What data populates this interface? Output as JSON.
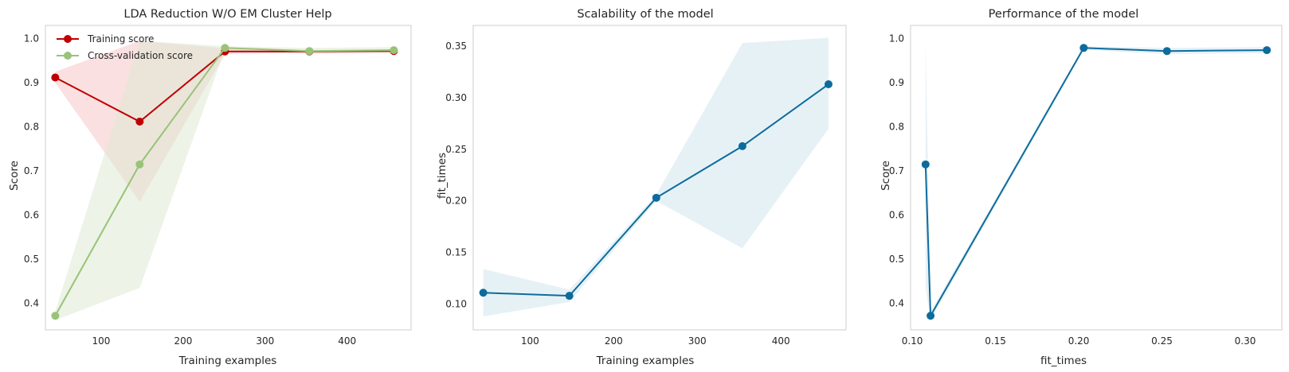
{
  "chart_data": [
    {
      "type": "line",
      "title": "LDA Reduction W/O EM Cluster Help",
      "xlabel": "Training examples",
      "ylabel": "Score",
      "xlim": [
        32,
        478
      ],
      "ylim": [
        0.34,
        1.03
      ],
      "xticks": [
        100,
        200,
        300,
        400
      ],
      "yticks": [
        0.4,
        0.5,
        0.6,
        0.7,
        0.8,
        0.9,
        1.0
      ],
      "grid": false,
      "legend": "top-left",
      "x": [
        44,
        147,
        251,
        354,
        457
      ],
      "series": [
        {
          "name": "Training score",
          "color": "#c00000",
          "band_color": "#f6c6c6",
          "values": [
            0.912,
            0.812,
            0.971,
            0.971,
            0.972
          ],
          "band_low": [
            0.9,
            0.63,
            0.965,
            0.968,
            0.969
          ],
          "band_high": [
            0.925,
            0.995,
            0.978,
            0.974,
            0.975
          ]
        },
        {
          "name": "Cross-validation score",
          "color": "#98c379",
          "band_color": "#dfead3",
          "values": [
            0.372,
            0.715,
            0.979,
            0.972,
            0.974
          ],
          "band_low": [
            0.362,
            0.435,
            0.975,
            0.965,
            0.967
          ],
          "band_high": [
            0.382,
            0.995,
            0.983,
            0.979,
            0.981
          ]
        }
      ]
    },
    {
      "type": "line",
      "title": "Scalability of the model",
      "xlabel": "Training examples",
      "ylabel": "fit_times",
      "xlim": [
        32,
        478
      ],
      "ylim": [
        0.075,
        0.37
      ],
      "xticks": [
        100,
        200,
        300,
        400
      ],
      "yticks": [
        0.1,
        0.15,
        0.2,
        0.25,
        0.3,
        0.35
      ],
      "grid": false,
      "x": [
        44,
        147,
        251,
        354,
        457
      ],
      "series": [
        {
          "color": "#0c6c9c",
          "band_color": "#d2e6ee",
          "values": [
            0.111,
            0.108,
            0.203,
            0.253,
            0.313
          ],
          "band_low": [
            0.088,
            0.102,
            0.2,
            0.154,
            0.27
          ],
          "band_high": [
            0.134,
            0.114,
            0.206,
            0.353,
            0.358
          ]
        }
      ]
    },
    {
      "type": "line",
      "title": "Performance of the model",
      "xlabel": "fit_times",
      "ylabel": "Score",
      "xlim": [
        0.099,
        0.322
      ],
      "ylim": [
        0.34,
        1.03
      ],
      "xticks": [
        0.1,
        0.15,
        0.2,
        0.25,
        0.3
      ],
      "yticks": [
        0.4,
        0.5,
        0.6,
        0.7,
        0.8,
        0.9,
        1.0
      ],
      "grid": false,
      "series": [
        {
          "color": "#0c6c9c",
          "band_color": "#d2e6ee",
          "x": [
            0.108,
            0.111,
            0.203,
            0.253,
            0.313
          ],
          "values": [
            0.715,
            0.372,
            0.979,
            0.972,
            0.974
          ],
          "band_low": [
            0.435,
            0.362,
            0.975,
            0.965,
            0.967
          ],
          "band_high": [
            0.995,
            0.382,
            0.983,
            0.979,
            0.981
          ]
        }
      ]
    }
  ]
}
